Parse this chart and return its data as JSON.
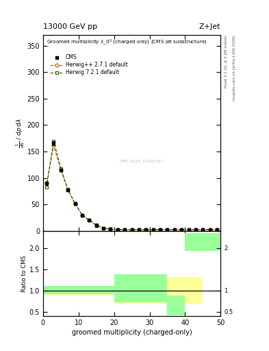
{
  "top_left": "13000 GeV pp",
  "top_right": "Z+Jet",
  "inner_title": "Groomed multiplicity $\\lambda\\_0^0$ (charged only) (CMS jet substructure)",
  "ylabel_main": "$\\frac{1}{\\mathrm{d}N}$ / $\\mathrm{d}p\\,\\mathrm{d}\\lambda$",
  "ylabel_ratio": "Ratio to CMS",
  "xlabel": "groomed multiplicity (charged-only)",
  "right_top_label": "Rivet 3.1.10, ≥ 3.2M events",
  "right_bot_label": "mcplots.cern.ch [arXiv:1306.3436]",
  "watermark": "CMS-2021_I1920187",
  "cms_x": [
    1,
    3,
    5,
    7,
    9,
    11,
    13,
    15,
    17,
    19,
    21,
    23,
    25,
    27,
    29,
    31,
    33,
    35,
    37,
    39,
    41,
    43,
    45,
    47,
    49
  ],
  "cms_y": [
    90,
    165,
    115,
    77,
    52,
    30,
    20,
    10,
    5,
    3,
    2,
    2,
    2,
    2,
    2,
    2,
    2,
    2,
    2,
    2,
    2,
    2,
    2,
    2,
    2
  ],
  "cms_yerr": [
    3,
    4,
    3,
    2,
    2,
    1,
    1,
    0.5,
    0.3,
    0.2,
    0.1,
    0.1,
    0.1,
    0.1,
    0.1,
    0.1,
    0.1,
    0.1,
    0.1,
    0.1,
    0.1,
    0.1,
    0.1,
    0.1,
    0.1
  ],
  "hpp_x": [
    1,
    3,
    5,
    7,
    9,
    11,
    13,
    15,
    17,
    19,
    21,
    23,
    25,
    27,
    29,
    31,
    33,
    35,
    37,
    39,
    41,
    43,
    45,
    47,
    49
  ],
  "hpp_y": [
    90,
    161,
    115,
    77,
    52,
    30,
    20,
    10,
    5,
    3,
    2,
    2,
    2,
    2,
    2,
    2,
    2,
    2,
    2,
    2,
    2,
    2,
    2,
    2,
    2
  ],
  "h72_x": [
    1,
    3,
    5,
    7,
    9,
    11,
    13,
    15,
    17,
    19,
    21,
    23,
    25,
    27,
    29,
    31,
    33,
    35,
    37,
    39,
    41,
    43,
    45,
    47,
    49
  ],
  "h72_y": [
    83,
    170,
    118,
    78,
    52,
    30,
    20,
    11,
    5,
    3,
    2,
    2,
    2,
    2,
    2,
    2,
    2,
    2,
    2,
    2,
    2,
    2,
    2,
    2,
    2
  ],
  "ylim_main": [
    0,
    370
  ],
  "ylim_ratio": [
    0.4,
    2.4
  ],
  "xlim": [
    0,
    50
  ],
  "xticks": [
    0,
    10,
    20,
    30,
    40,
    50
  ],
  "yticks_main": [
    0,
    50,
    100,
    150,
    200,
    250,
    300,
    350
  ],
  "yticks_ratio": [
    0.5,
    1.0,
    1.5,
    2.0
  ],
  "yticks_ratio_right": [
    0.5,
    1.0,
    2.0
  ],
  "ocolor": "#cc6600",
  "gcolor": "#336600",
  "kcolor": "#000000",
  "yellow_color": "#ffff99",
  "lgreen_color": "#99ff99",
  "ratio_bins": [
    0,
    5,
    10,
    15,
    20,
    25,
    30,
    35,
    40,
    45,
    50
  ],
  "yellow_lo": [
    0.88,
    0.88,
    0.88,
    0.88,
    0.68,
    0.68,
    0.68,
    0.68,
    0.68,
    1.95
  ],
  "yellow_hi": [
    1.08,
    1.08,
    1.08,
    1.08,
    1.32,
    1.32,
    1.32,
    1.32,
    1.32,
    2.35
  ],
  "green_lo": [
    0.92,
    0.92,
    0.92,
    0.92,
    0.72,
    0.72,
    0.72,
    0.42,
    1.92,
    1.92
  ],
  "green_hi": [
    1.1,
    1.1,
    1.1,
    1.1,
    1.38,
    1.38,
    1.38,
    0.88,
    2.35,
    2.35
  ]
}
